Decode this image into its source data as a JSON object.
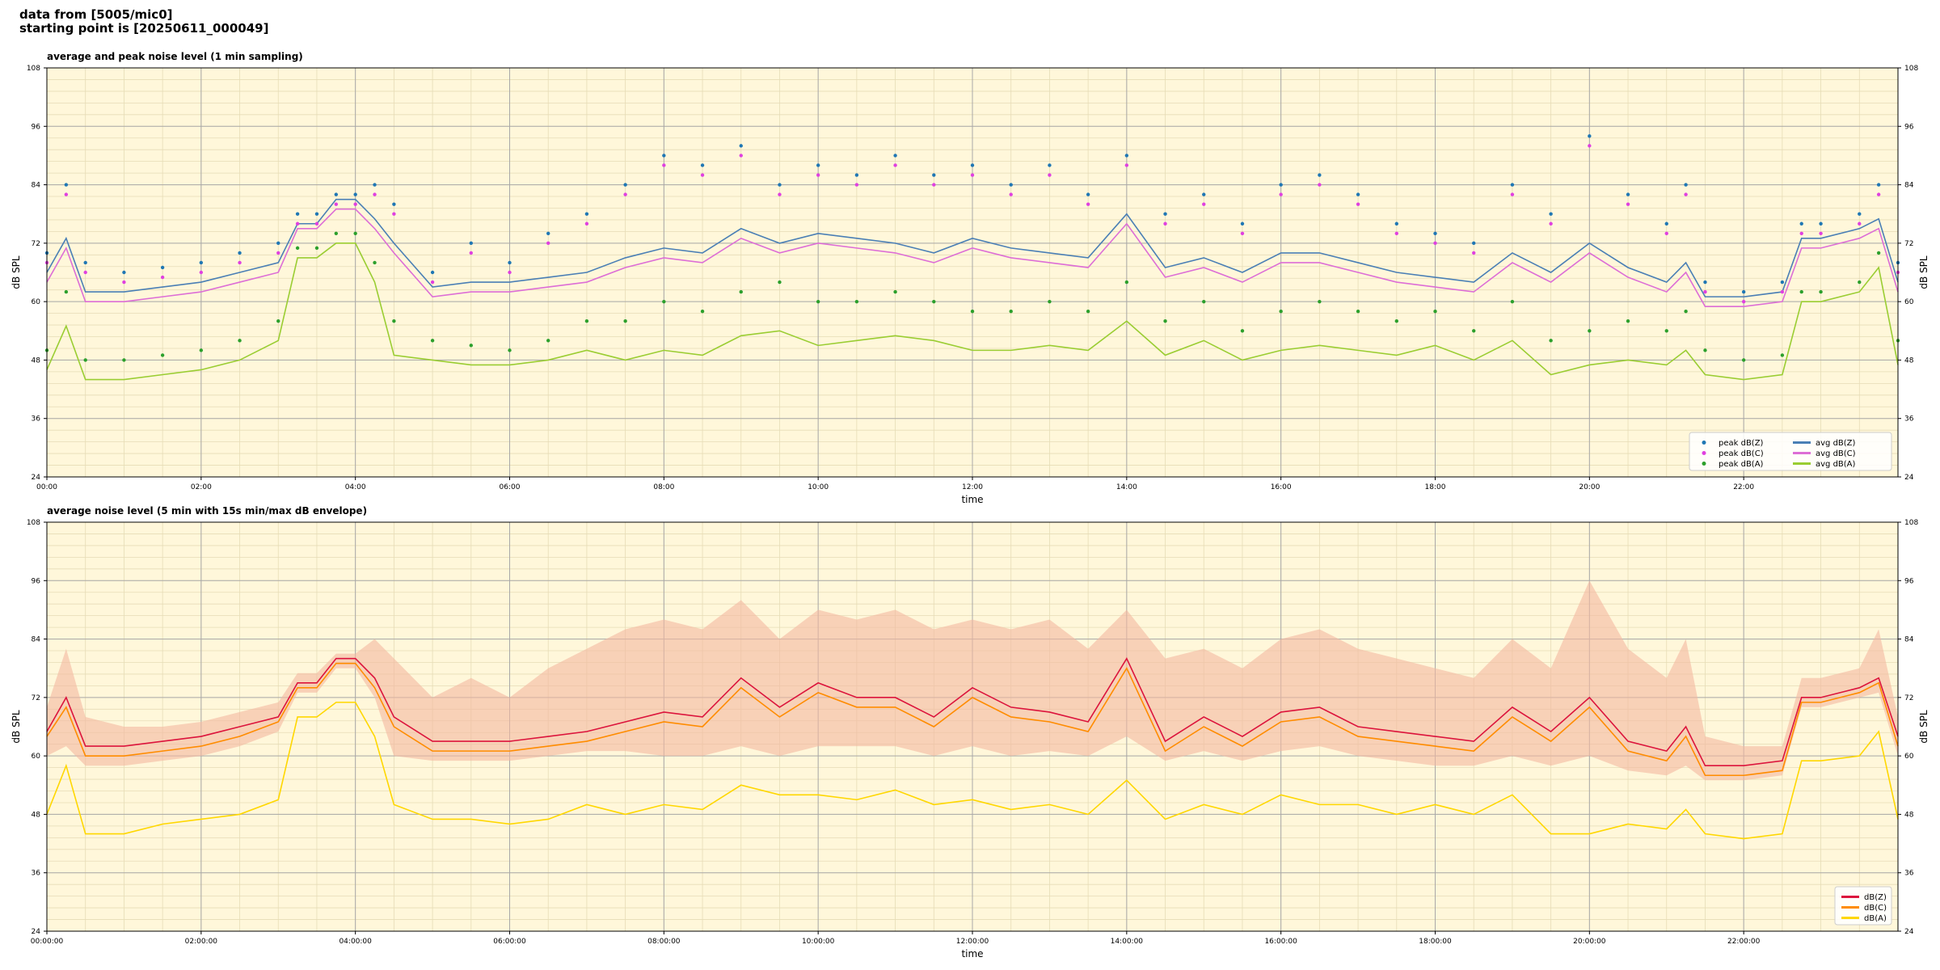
{
  "header": {
    "line1": "data from [5005/mic0]",
    "line2": "starting point is [20250611_000049]"
  },
  "colors": {
    "background_plot": "#fff7da",
    "grid_major": "#a8a8a8",
    "grid_minor": "#e6dcb6",
    "peak_z": "#1f77b4",
    "peak_c": "#e040e0",
    "peak_a": "#2ca02c",
    "avg_z": "#4a7fb5",
    "avg_c": "#dd6ed6",
    "avg_a": "#9acd32",
    "env_z": "#dc143c",
    "env_c": "#ff8c00",
    "env_a": "#ffd700",
    "envelope_fill": "#f4b8a0"
  },
  "chart_data": [
    {
      "type": "line",
      "title": "average and peak noise level (1 min sampling)",
      "xlabel": "time",
      "ylabel": "dB SPL",
      "xlim": [
        0,
        24
      ],
      "ylim": [
        24,
        108
      ],
      "x_unit": "hours since 00:00",
      "x_ticks": [
        0,
        2,
        4,
        6,
        8,
        10,
        12,
        14,
        16,
        18,
        20,
        22
      ],
      "x_tick_labels": [
        "00:00",
        "02:00",
        "04:00",
        "06:00",
        "08:00",
        "10:00",
        "12:00",
        "14:00",
        "16:00",
        "18:00",
        "20:00",
        "22:00"
      ],
      "y_ticks": [
        24,
        36,
        48,
        60,
        72,
        84,
        96,
        108
      ],
      "y_tick_labels": [
        "24",
        "36",
        "48",
        "60",
        "72",
        "84",
        "96",
        "108"
      ],
      "grid": true,
      "legend_position": "bottom-right",
      "legend": [
        "peak dB(Z)",
        "peak dB(C)",
        "peak dB(A)",
        "avg dB(Z)",
        "avg dB(C)",
        "avg dB(A)"
      ],
      "x": [
        0,
        0.25,
        0.5,
        1,
        1.5,
        2,
        2.5,
        3,
        3.25,
        3.5,
        3.75,
        4,
        4.25,
        4.5,
        5,
        5.5,
        6,
        6.5,
        7,
        7.5,
        8,
        8.5,
        9,
        9.5,
        10,
        10.5,
        11,
        11.5,
        12,
        12.5,
        13,
        13.5,
        14,
        14.5,
        15,
        15.5,
        16,
        16.5,
        17,
        17.5,
        18,
        18.5,
        19,
        19.5,
        20,
        20.5,
        21,
        21.25,
        21.5,
        22,
        22.5,
        22.75,
        23,
        23.5,
        23.75,
        24
      ],
      "series": [
        {
          "name": "avg dB(Z)",
          "values": [
            66,
            73,
            62,
            62,
            63,
            64,
            66,
            68,
            76,
            76,
            81,
            81,
            77,
            72,
            63,
            64,
            64,
            65,
            66,
            69,
            71,
            70,
            75,
            72,
            74,
            73,
            72,
            70,
            73,
            71,
            70,
            69,
            78,
            67,
            69,
            66,
            70,
            70,
            68,
            66,
            65,
            64,
            70,
            66,
            72,
            67,
            64,
            68,
            61,
            61,
            62,
            73,
            73,
            75,
            77,
            64
          ]
        },
        {
          "name": "avg dB(C)",
          "values": [
            64,
            71,
            60,
            60,
            61,
            62,
            64,
            66,
            75,
            75,
            79,
            79,
            75,
            70,
            61,
            62,
            62,
            63,
            64,
            67,
            69,
            68,
            73,
            70,
            72,
            71,
            70,
            68,
            71,
            69,
            68,
            67,
            76,
            65,
            67,
            64,
            68,
            68,
            66,
            64,
            63,
            62,
            68,
            64,
            70,
            65,
            62,
            66,
            59,
            59,
            60,
            71,
            71,
            73,
            75,
            62
          ]
        },
        {
          "name": "avg dB(A)",
          "values": [
            46,
            55,
            44,
            44,
            45,
            46,
            48,
            52,
            69,
            69,
            72,
            72,
            64,
            49,
            48,
            47,
            47,
            48,
            50,
            48,
            50,
            49,
            53,
            54,
            51,
            52,
            53,
            52,
            50,
            50,
            51,
            50,
            56,
            49,
            52,
            48,
            50,
            51,
            50,
            49,
            51,
            48,
            52,
            45,
            47,
            48,
            47,
            50,
            45,
            44,
            45,
            60,
            60,
            62,
            67,
            47
          ]
        },
        {
          "name": "peak dB(Z)",
          "values": [
            70,
            84,
            68,
            66,
            67,
            68,
            70,
            72,
            78,
            78,
            82,
            82,
            84,
            80,
            66,
            72,
            68,
            74,
            78,
            84,
            90,
            88,
            92,
            84,
            88,
            86,
            90,
            86,
            88,
            84,
            88,
            82,
            90,
            78,
            82,
            76,
            84,
            86,
            82,
            76,
            74,
            72,
            84,
            78,
            94,
            82,
            76,
            84,
            64,
            62,
            64,
            76,
            76,
            78,
            84,
            68
          ]
        },
        {
          "name": "peak dB(C)",
          "values": [
            68,
            82,
            66,
            64,
            65,
            66,
            68,
            70,
            76,
            76,
            80,
            80,
            82,
            78,
            64,
            70,
            66,
            72,
            76,
            82,
            88,
            86,
            90,
            82,
            86,
            84,
            88,
            84,
            86,
            82,
            86,
            80,
            88,
            76,
            80,
            74,
            82,
            84,
            80,
            74,
            72,
            70,
            82,
            76,
            92,
            80,
            74,
            82,
            62,
            60,
            62,
            74,
            74,
            76,
            82,
            66
          ]
        },
        {
          "name": "peak dB(A)",
          "values": [
            50,
            62,
            48,
            48,
            49,
            50,
            52,
            56,
            71,
            71,
            74,
            74,
            68,
            56,
            52,
            51,
            50,
            52,
            56,
            56,
            60,
            58,
            62,
            64,
            60,
            60,
            62,
            60,
            58,
            58,
            60,
            58,
            64,
            56,
            60,
            54,
            58,
            60,
            58,
            56,
            58,
            54,
            60,
            52,
            54,
            56,
            54,
            58,
            50,
            48,
            49,
            62,
            62,
            64,
            70,
            52
          ]
        }
      ]
    },
    {
      "type": "line",
      "title": "average noise level (5 min with 15s min/max dB envelope)",
      "xlabel": "time",
      "ylabel": "dB SPL",
      "xlim": [
        0,
        24
      ],
      "ylim": [
        24,
        108
      ],
      "x_unit": "hours since 00:00",
      "x_ticks": [
        0,
        2,
        4,
        6,
        8,
        10,
        12,
        14,
        16,
        18,
        20,
        22
      ],
      "x_tick_labels": [
        "00:00:00",
        "02:00:00",
        "04:00:00",
        "06:00:00",
        "08:00:00",
        "10:00:00",
        "12:00:00",
        "14:00:00",
        "16:00:00",
        "18:00:00",
        "20:00:00",
        "22:00:00"
      ],
      "y_ticks": [
        24,
        36,
        48,
        60,
        72,
        84,
        96,
        108
      ],
      "y_tick_labels": [
        "24",
        "36",
        "48",
        "60",
        "72",
        "84",
        "96",
        "108"
      ],
      "grid": true,
      "legend_position": "bottom-right",
      "legend": [
        "dB(Z)",
        "dB(C)",
        "dB(A)"
      ],
      "x": [
        0,
        0.25,
        0.5,
        1,
        1.5,
        2,
        2.5,
        3,
        3.25,
        3.5,
        3.75,
        4,
        4.25,
        4.5,
        5,
        5.5,
        6,
        6.5,
        7,
        7.5,
        8,
        8.5,
        9,
        9.5,
        10,
        10.5,
        11,
        11.5,
        12,
        12.5,
        13,
        13.5,
        14,
        14.5,
        15,
        15.5,
        16,
        16.5,
        17,
        17.5,
        18,
        18.5,
        19,
        19.5,
        20,
        20.5,
        21,
        21.25,
        21.5,
        22,
        22.5,
        22.75,
        23,
        23.5,
        23.75,
        24
      ],
      "series": [
        {
          "name": "dB(Z)",
          "values": [
            65,
            72,
            62,
            62,
            63,
            64,
            66,
            68,
            75,
            75,
            80,
            80,
            76,
            68,
            63,
            63,
            63,
            64,
            65,
            67,
            69,
            68,
            76,
            70,
            75,
            72,
            72,
            68,
            74,
            70,
            69,
            67,
            80,
            63,
            68,
            64,
            69,
            70,
            66,
            65,
            64,
            63,
            70,
            65,
            72,
            63,
            61,
            66,
            58,
            58,
            59,
            72,
            72,
            74,
            76,
            64
          ]
        },
        {
          "name": "dB(C)",
          "values": [
            64,
            70,
            60,
            60,
            61,
            62,
            64,
            67,
            74,
            74,
            79,
            79,
            74,
            66,
            61,
            61,
            61,
            62,
            63,
            65,
            67,
            66,
            74,
            68,
            73,
            70,
            70,
            66,
            72,
            68,
            67,
            65,
            78,
            61,
            66,
            62,
            67,
            68,
            64,
            63,
            62,
            61,
            68,
            63,
            70,
            61,
            59,
            64,
            56,
            56,
            57,
            71,
            71,
            73,
            75,
            62
          ]
        },
        {
          "name": "dB(A)",
          "values": [
            48,
            58,
            44,
            44,
            46,
            47,
            48,
            51,
            68,
            68,
            71,
            71,
            64,
            50,
            47,
            47,
            46,
            47,
            50,
            48,
            50,
            49,
            54,
            52,
            52,
            51,
            53,
            50,
            51,
            49,
            50,
            48,
            55,
            47,
            50,
            48,
            52,
            50,
            50,
            48,
            50,
            48,
            52,
            44,
            44,
            46,
            45,
            49,
            44,
            43,
            44,
            59,
            59,
            60,
            65,
            47
          ]
        },
        {
          "name": "envelope max",
          "values": [
            70,
            82,
            68,
            66,
            66,
            67,
            69,
            71,
            77,
            77,
            81,
            81,
            84,
            80,
            72,
            76,
            72,
            78,
            82,
            86,
            88,
            86,
            92,
            84,
            90,
            88,
            90,
            86,
            88,
            86,
            88,
            82,
            90,
            80,
            82,
            78,
            84,
            86,
            82,
            80,
            78,
            76,
            84,
            78,
            96,
            82,
            76,
            84,
            64,
            62,
            62,
            76,
            76,
            78,
            86,
            68
          ]
        },
        {
          "name": "envelope min",
          "values": [
            60,
            62,
            58,
            58,
            59,
            60,
            62,
            65,
            73,
            73,
            78,
            78,
            72,
            60,
            59,
            59,
            59,
            60,
            61,
            61,
            60,
            60,
            62,
            60,
            62,
            62,
            62,
            60,
            62,
            60,
            61,
            60,
            64,
            59,
            61,
            59,
            61,
            62,
            60,
            59,
            58,
            58,
            60,
            58,
            60,
            57,
            56,
            58,
            55,
            55,
            56,
            70,
            70,
            72,
            73,
            60
          ]
        }
      ]
    }
  ]
}
